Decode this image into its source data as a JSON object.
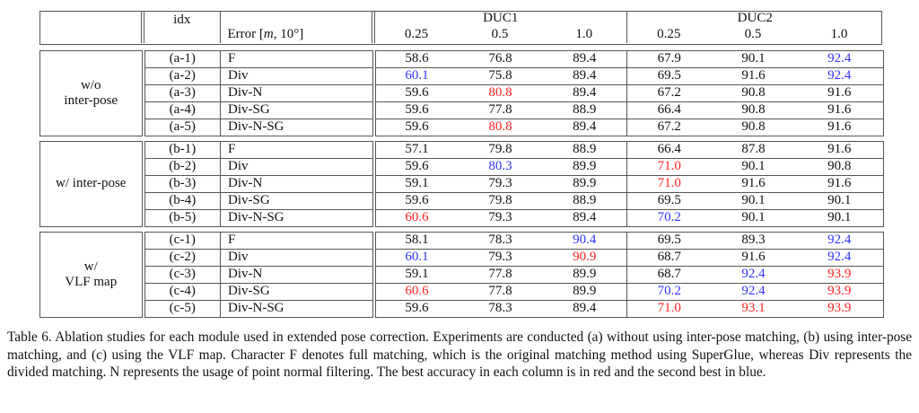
{
  "header": {
    "idx": "idx",
    "error": "Error [m, 10°]",
    "error_prefix": "Error [",
    "error_m": "m",
    "error_suffix": ", 10°]",
    "groups": [
      "DUC1",
      "DUC2"
    ],
    "thresholds": [
      "0.25",
      "0.5",
      "1.0",
      "0.25",
      "0.5",
      "1.0"
    ]
  },
  "colors": {
    "best": "#ff2222",
    "second": "#3333ff"
  },
  "sections": [
    {
      "label_lines": [
        "w/o",
        "inter-pose"
      ],
      "rows": [
        {
          "idx": "(a-1)",
          "method": "F",
          "values": [
            "58.6",
            "76.8",
            "89.4",
            "67.9",
            "90.1",
            "92.4"
          ],
          "marks": [
            "",
            "",
            "",
            "",
            "",
            "second"
          ]
        },
        {
          "idx": "(a-2)",
          "method": "Div",
          "values": [
            "60.1",
            "75.8",
            "89.4",
            "69.5",
            "91.6",
            "92.4"
          ],
          "marks": [
            "second",
            "",
            "",
            "",
            "",
            "second"
          ]
        },
        {
          "idx": "(a-3)",
          "method": "Div-N",
          "values": [
            "59.6",
            "80.8",
            "89.4",
            "67.2",
            "90.8",
            "91.6"
          ],
          "marks": [
            "",
            "best",
            "",
            "",
            "",
            ""
          ]
        },
        {
          "idx": "(a-4)",
          "method": "Div-SG",
          "values": [
            "59.6",
            "77.8",
            "88.9",
            "66.4",
            "90.8",
            "91.6"
          ],
          "marks": [
            "",
            "",
            "",
            "",
            "",
            ""
          ]
        },
        {
          "idx": "(a-5)",
          "method": "Div-N-SG",
          "values": [
            "59.6",
            "80.8",
            "89.4",
            "67.2",
            "90.8",
            "91.6"
          ],
          "marks": [
            "",
            "best",
            "",
            "",
            "",
            ""
          ]
        }
      ]
    },
    {
      "label_lines": [
        "w/ inter-pose"
      ],
      "rows": [
        {
          "idx": "(b-1)",
          "method": "F",
          "values": [
            "57.1",
            "79.8",
            "88.9",
            "66.4",
            "87.8",
            "91.6"
          ],
          "marks": [
            "",
            "",
            "",
            "",
            "",
            ""
          ]
        },
        {
          "idx": "(b-2)",
          "method": "Div",
          "values": [
            "59.6",
            "80.3",
            "89.9",
            "71.0",
            "90.1",
            "90.8"
          ],
          "marks": [
            "",
            "second",
            "",
            "best",
            "",
            ""
          ]
        },
        {
          "idx": "(b-3)",
          "method": "Div-N",
          "values": [
            "59.1",
            "79.3",
            "89.9",
            "71.0",
            "91.6",
            "91.6"
          ],
          "marks": [
            "",
            "",
            "",
            "best",
            "",
            ""
          ]
        },
        {
          "idx": "(b-4)",
          "method": "Div-SG",
          "values": [
            "59.6",
            "79.8",
            "88.9",
            "69.5",
            "90.1",
            "90.1"
          ],
          "marks": [
            "",
            "",
            "",
            "",
            "",
            ""
          ]
        },
        {
          "idx": "(b-5)",
          "method": "Div-N-SG",
          "values": [
            "60.6",
            "79.3",
            "89.4",
            "70.2",
            "90.1",
            "90.1"
          ],
          "marks": [
            "best",
            "",
            "",
            "second",
            "",
            ""
          ]
        }
      ]
    },
    {
      "label_lines": [
        "w/",
        "VLF map"
      ],
      "rows": [
        {
          "idx": "(c-1)",
          "method": "F",
          "values": [
            "58.1",
            "78.3",
            "90.4",
            "69.5",
            "89.3",
            "92.4"
          ],
          "marks": [
            "",
            "",
            "second",
            "",
            "",
            "second"
          ]
        },
        {
          "idx": "(c-2)",
          "method": "Div",
          "values": [
            "60.1",
            "79.3",
            "90.9",
            "68.7",
            "91.6",
            "92.4"
          ],
          "marks": [
            "second",
            "",
            "best",
            "",
            "",
            "second"
          ]
        },
        {
          "idx": "(c-3)",
          "method": "Div-N",
          "values": [
            "59.1",
            "77.8",
            "89.9",
            "68.7",
            "92.4",
            "93.9"
          ],
          "marks": [
            "",
            "",
            "",
            "",
            "second",
            "best"
          ]
        },
        {
          "idx": "(c-4)",
          "method": "Div-SG",
          "values": [
            "60.6",
            "77.8",
            "89.9",
            "70.2",
            "92.4",
            "93.9"
          ],
          "marks": [
            "best",
            "",
            "",
            "second",
            "second",
            "best"
          ]
        },
        {
          "idx": "(c-5)",
          "method": "Div-N-SG",
          "values": [
            "59.6",
            "78.3",
            "89.4",
            "71.0",
            "93.1",
            "93.9"
          ],
          "marks": [
            "",
            "",
            "",
            "best",
            "best",
            "best"
          ]
        }
      ]
    }
  ],
  "caption": "Table 6. Ablation studies for each module used in extended pose correction. Experiments are conducted (a) without using inter-pose matching, (b) using inter-pose matching, and (c) using the VLF map. Character F denotes full matching, which is the original matching method using SuperGlue, whereas Div represents the divided matching. N represents the usage of point normal filtering. The best accuracy in each column is in red and the second best in blue."
}
